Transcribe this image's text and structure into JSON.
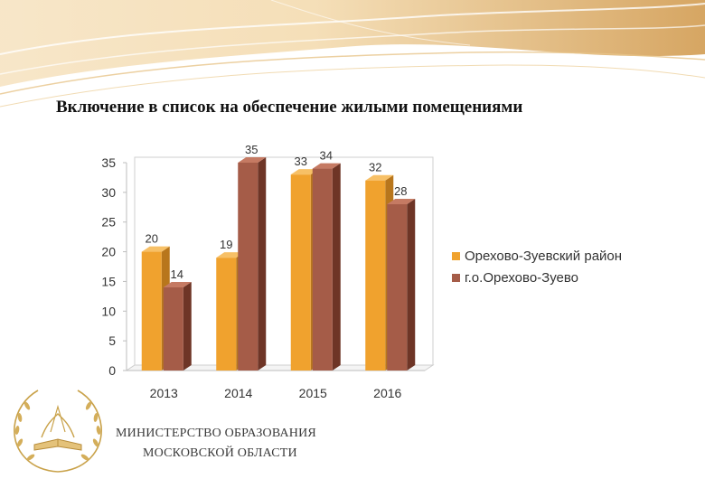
{
  "slide": {
    "title": "Включение в список на обеспечение жилыми помещениями"
  },
  "colors": {
    "series_1": "#f0a22e",
    "series_2": "#a55c48",
    "banner_gold": "#d9a65a",
    "logo_gold": "#c9a24a"
  },
  "chart_data": {
    "type": "bar",
    "title": "",
    "xlabel": "",
    "ylabel": "",
    "categories": [
      "2013",
      "2014",
      "2015",
      "2016"
    ],
    "series": [
      {
        "name": "Орехово-Зуевский район",
        "values": [
          20,
          19,
          33,
          32
        ]
      },
      {
        "name": "г.о.Орехово-Зуево",
        "values": [
          14,
          35,
          34,
          28
        ]
      }
    ],
    "ylim": [
      0,
      35
    ],
    "yticks": [
      0,
      5,
      10,
      15,
      20,
      25,
      30,
      35
    ],
    "data_labels": true,
    "grid": false,
    "legend_position": "right",
    "style": "3d"
  },
  "footer": {
    "ministry_line_1": "МИНИСТЕРСТВО ОБРАЗОВАНИЯ",
    "ministry_line_2": "МОСКОВСКОЙ ОБЛАСТИ"
  },
  "logo": {
    "icon": "laurel-wreath-book-icon"
  }
}
